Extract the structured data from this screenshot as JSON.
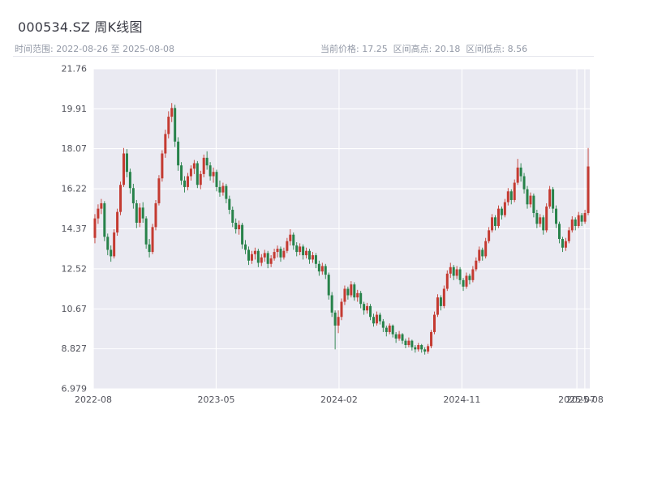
{
  "header": {
    "title": "000534.SZ 周K线图",
    "range_label": "时间范围: 2022-08-26 至 2025-08-08",
    "stats_label": "当前价格: 17.25  区间高点: 20.18  区间低点: 8.56"
  },
  "chart_data": {
    "type": "candlestick",
    "title": "000534.SZ 周K线图",
    "symbol": "000534.SZ",
    "frequency": "周K",
    "start_date": "2022-08-26",
    "end_date": "2025-08-08",
    "current_price": 17.25,
    "range_high": 20.18,
    "range_low": 8.56,
    "grid": true,
    "colors": {
      "up": "#c43a31",
      "down": "#27824a",
      "plot_bg": "#eaeaf2",
      "grid": "#ffffff",
      "tick_text": "#52535c"
    },
    "y_ticks": [
      {
        "label": "21.76",
        "value": 21.76
      },
      {
        "label": "19.91",
        "value": 19.91
      },
      {
        "label": "18.07",
        "value": 18.07
      },
      {
        "label": "16.22",
        "value": 16.22
      },
      {
        "label": "14.37",
        "value": 14.37
      },
      {
        "label": "12.52",
        "value": 12.52
      },
      {
        "label": "10.67",
        "value": 10.67
      },
      {
        "label": "8.827",
        "value": 8.827
      },
      {
        "label": "6.979",
        "value": 6.979
      }
    ],
    "x_ticks": [
      {
        "label": "2022-08",
        "f": 0.0
      },
      {
        "label": "2023-05",
        "f": 0.2475
      },
      {
        "label": "2024-02",
        "f": 0.495
      },
      {
        "label": "2024-11",
        "f": 0.7425
      },
      {
        "label": "2025-07",
        "f": 0.974
      },
      {
        "label": "2025-08",
        "f": 0.99
      }
    ],
    "ohlc_format": [
      "open",
      "high",
      "low",
      "close"
    ],
    "ohlc": [
      [
        13.95,
        15.05,
        13.7,
        14.85
      ],
      [
        14.85,
        15.5,
        14.6,
        15.3
      ],
      [
        15.3,
        15.75,
        15.05,
        15.55
      ],
      [
        15.55,
        15.65,
        13.8,
        14.0
      ],
      [
        14.0,
        14.15,
        13.15,
        13.4
      ],
      [
        13.4,
        13.6,
        12.85,
        13.1
      ],
      [
        13.1,
        14.35,
        13.0,
        14.2
      ],
      [
        14.2,
        15.3,
        14.05,
        15.15
      ],
      [
        15.15,
        16.55,
        15.0,
        16.4
      ],
      [
        16.4,
        18.1,
        16.3,
        17.85
      ],
      [
        17.85,
        18.05,
        16.75,
        17.0
      ],
      [
        17.0,
        17.15,
        16.0,
        16.25
      ],
      [
        16.25,
        16.45,
        15.3,
        15.55
      ],
      [
        15.55,
        15.7,
        14.4,
        14.65
      ],
      [
        14.65,
        15.55,
        14.45,
        15.35
      ],
      [
        15.35,
        15.6,
        14.65,
        14.85
      ],
      [
        14.85,
        14.95,
        13.45,
        13.65
      ],
      [
        13.65,
        13.9,
        13.05,
        13.3
      ],
      [
        13.3,
        14.6,
        13.2,
        14.45
      ],
      [
        14.45,
        15.7,
        14.3,
        15.55
      ],
      [
        15.55,
        16.85,
        15.45,
        16.7
      ],
      [
        16.7,
        18.0,
        16.55,
        17.85
      ],
      [
        17.85,
        18.95,
        17.65,
        18.75
      ],
      [
        18.75,
        19.8,
        18.55,
        19.55
      ],
      [
        19.55,
        20.18,
        19.3,
        19.95
      ],
      [
        19.95,
        20.1,
        18.15,
        18.4
      ],
      [
        18.4,
        18.6,
        17.05,
        17.3
      ],
      [
        17.3,
        17.45,
        16.4,
        16.6
      ],
      [
        16.6,
        16.8,
        16.05,
        16.3
      ],
      [
        16.3,
        16.95,
        16.15,
        16.8
      ],
      [
        16.8,
        17.3,
        16.6,
        17.15
      ],
      [
        17.15,
        17.55,
        16.9,
        17.4
      ],
      [
        17.4,
        17.5,
        16.25,
        16.4
      ],
      [
        16.4,
        17.05,
        16.2,
        16.9
      ],
      [
        16.9,
        17.8,
        16.75,
        17.65
      ],
      [
        17.65,
        17.95,
        17.1,
        17.3
      ],
      [
        17.3,
        17.45,
        16.6,
        16.8
      ],
      [
        16.8,
        17.2,
        16.5,
        17.0
      ],
      [
        17.0,
        17.1,
        16.1,
        16.3
      ],
      [
        16.3,
        16.6,
        15.85,
        16.05
      ],
      [
        16.05,
        16.5,
        15.9,
        16.35
      ],
      [
        16.35,
        16.45,
        15.55,
        15.75
      ],
      [
        15.75,
        15.9,
        15.05,
        15.25
      ],
      [
        15.25,
        15.4,
        14.45,
        14.65
      ],
      [
        14.65,
        14.85,
        14.15,
        14.35
      ],
      [
        14.35,
        14.75,
        14.1,
        14.55
      ],
      [
        14.55,
        14.65,
        13.45,
        13.65
      ],
      [
        13.65,
        13.85,
        13.2,
        13.4
      ],
      [
        13.4,
        13.55,
        12.7,
        12.9
      ],
      [
        12.9,
        13.35,
        12.75,
        13.2
      ],
      [
        13.2,
        13.5,
        12.95,
        13.35
      ],
      [
        13.35,
        13.45,
        12.6,
        12.8
      ],
      [
        12.8,
        13.2,
        12.65,
        13.05
      ],
      [
        13.05,
        13.4,
        12.85,
        13.25
      ],
      [
        13.25,
        13.35,
        12.55,
        12.75
      ],
      [
        12.75,
        13.15,
        12.6,
        13.0
      ],
      [
        13.0,
        13.45,
        12.9,
        13.3
      ],
      [
        13.3,
        13.6,
        13.05,
        13.45
      ],
      [
        13.45,
        13.55,
        12.85,
        13.05
      ],
      [
        13.05,
        13.5,
        12.95,
        13.35
      ],
      [
        13.35,
        13.95,
        13.25,
        13.8
      ],
      [
        13.8,
        14.35,
        13.6,
        14.1
      ],
      [
        14.1,
        14.2,
        13.4,
        13.6
      ],
      [
        13.6,
        13.75,
        13.1,
        13.3
      ],
      [
        13.3,
        13.7,
        13.15,
        13.55
      ],
      [
        13.55,
        13.65,
        12.95,
        13.15
      ],
      [
        13.15,
        13.5,
        13.0,
        13.35
      ],
      [
        13.35,
        13.45,
        12.75,
        12.95
      ],
      [
        12.95,
        13.3,
        12.8,
        13.15
      ],
      [
        13.15,
        13.25,
        12.55,
        12.75
      ],
      [
        12.75,
        12.9,
        12.2,
        12.4
      ],
      [
        12.4,
        12.8,
        12.25,
        12.65
      ],
      [
        12.65,
        12.75,
        12.05,
        12.25
      ],
      [
        12.25,
        12.35,
        11.1,
        11.3
      ],
      [
        11.3,
        11.45,
        10.3,
        10.5
      ],
      [
        10.5,
        10.6,
        8.8,
        9.9
      ],
      [
        9.9,
        10.6,
        9.55,
        10.3
      ],
      [
        10.3,
        11.15,
        10.15,
        11.0
      ],
      [
        11.0,
        11.75,
        10.85,
        11.6
      ],
      [
        11.6,
        11.7,
        11.1,
        11.3
      ],
      [
        11.3,
        11.95,
        11.2,
        11.8
      ],
      [
        11.8,
        11.9,
        11.05,
        11.2
      ],
      [
        11.2,
        11.55,
        11.0,
        11.4
      ],
      [
        11.4,
        11.5,
        10.7,
        10.9
      ],
      [
        10.9,
        11.0,
        10.4,
        10.6
      ],
      [
        10.6,
        10.95,
        10.45,
        10.8
      ],
      [
        10.8,
        10.9,
        10.15,
        10.3
      ],
      [
        10.3,
        10.45,
        9.85,
        10.0
      ],
      [
        10.0,
        10.55,
        9.9,
        10.4
      ],
      [
        10.4,
        10.5,
        9.95,
        10.1
      ],
      [
        10.1,
        10.2,
        9.6,
        9.8
      ],
      [
        9.8,
        9.9,
        9.4,
        9.6
      ],
      [
        9.6,
        10.0,
        9.5,
        9.9
      ],
      [
        9.9,
        9.95,
        9.35,
        9.5
      ],
      [
        9.5,
        9.6,
        9.1,
        9.3
      ],
      [
        9.3,
        9.65,
        9.2,
        9.5
      ],
      [
        9.5,
        9.55,
        9.05,
        9.2
      ],
      [
        9.2,
        9.3,
        8.85,
        9.0
      ],
      [
        9.0,
        9.35,
        8.9,
        9.2
      ],
      [
        9.2,
        9.25,
        8.75,
        8.9
      ],
      [
        8.9,
        9.0,
        8.65,
        8.8
      ],
      [
        8.8,
        9.1,
        8.7,
        9.0
      ],
      [
        9.0,
        9.05,
        8.65,
        8.8
      ],
      [
        8.8,
        8.9,
        8.56,
        8.7
      ],
      [
        8.7,
        9.05,
        8.6,
        8.95
      ],
      [
        8.95,
        9.7,
        8.85,
        9.6
      ],
      [
        9.6,
        10.55,
        9.5,
        10.4
      ],
      [
        10.4,
        11.35,
        10.3,
        11.2
      ],
      [
        11.2,
        11.3,
        10.6,
        10.8
      ],
      [
        10.8,
        11.75,
        10.7,
        11.6
      ],
      [
        11.6,
        12.45,
        11.5,
        12.3
      ],
      [
        12.3,
        12.8,
        12.1,
        12.6
      ],
      [
        12.6,
        12.7,
        12.0,
        12.2
      ],
      [
        12.2,
        12.65,
        12.05,
        12.5
      ],
      [
        12.5,
        12.6,
        11.8,
        12.0
      ],
      [
        12.0,
        12.1,
        11.5,
        11.7
      ],
      [
        11.7,
        12.35,
        11.6,
        12.2
      ],
      [
        12.2,
        12.3,
        11.8,
        12.0
      ],
      [
        12.0,
        12.65,
        11.9,
        12.5
      ],
      [
        12.5,
        13.05,
        12.4,
        12.9
      ],
      [
        12.9,
        13.55,
        12.8,
        13.4
      ],
      [
        13.4,
        13.5,
        12.9,
        13.1
      ],
      [
        13.1,
        13.95,
        13.0,
        13.8
      ],
      [
        13.8,
        14.45,
        13.7,
        14.3
      ],
      [
        14.3,
        15.05,
        14.2,
        14.9
      ],
      [
        14.9,
        15.0,
        14.3,
        14.5
      ],
      [
        14.5,
        15.45,
        14.4,
        15.3
      ],
      [
        15.3,
        15.4,
        14.8,
        15.0
      ],
      [
        15.0,
        15.75,
        14.9,
        15.6
      ],
      [
        15.6,
        16.25,
        15.45,
        16.1
      ],
      [
        16.1,
        16.2,
        15.5,
        15.7
      ],
      [
        15.7,
        16.65,
        15.6,
        16.5
      ],
      [
        16.5,
        17.6,
        16.4,
        17.2
      ],
      [
        17.2,
        17.4,
        16.55,
        16.8
      ],
      [
        16.8,
        16.95,
        16.0,
        16.2
      ],
      [
        16.2,
        16.35,
        15.3,
        15.5
      ],
      [
        15.5,
        16.05,
        15.35,
        15.9
      ],
      [
        15.9,
        16.0,
        14.9,
        15.1
      ],
      [
        15.1,
        15.25,
        14.4,
        14.6
      ],
      [
        14.6,
        15.05,
        14.45,
        14.9
      ],
      [
        14.9,
        15.0,
        14.1,
        14.3
      ],
      [
        14.3,
        15.55,
        14.2,
        15.4
      ],
      [
        15.4,
        16.35,
        15.3,
        16.2
      ],
      [
        16.2,
        16.3,
        15.1,
        15.3
      ],
      [
        15.3,
        15.45,
        14.4,
        14.6
      ],
      [
        14.6,
        14.7,
        13.7,
        13.9
      ],
      [
        13.9,
        14.0,
        13.3,
        13.5
      ],
      [
        13.5,
        13.95,
        13.35,
        13.8
      ],
      [
        13.8,
        14.45,
        13.7,
        14.3
      ],
      [
        14.3,
        14.95,
        14.2,
        14.8
      ],
      [
        14.8,
        14.9,
        14.3,
        14.5
      ],
      [
        14.5,
        15.15,
        14.4,
        15.0
      ],
      [
        15.0,
        15.1,
        14.5,
        14.7
      ],
      [
        14.7,
        15.25,
        14.6,
        15.1
      ],
      [
        15.1,
        18.1,
        15.0,
        17.25
      ]
    ]
  }
}
